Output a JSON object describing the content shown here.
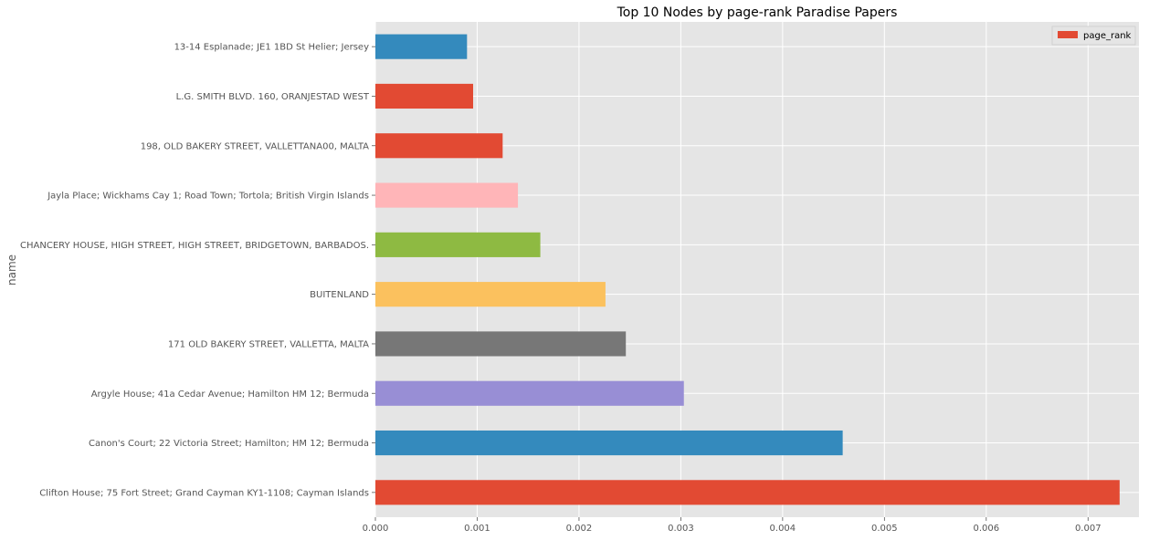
{
  "chart_data": {
    "type": "bar",
    "orientation": "horizontal",
    "title": "Top 10 Nodes by page-rank Paradise Papers",
    "ylabel": "name",
    "xlabel": "",
    "xlim": [
      0,
      0.0075
    ],
    "xticks": [
      0,
      0.001,
      0.002,
      0.003,
      0.004,
      0.005,
      0.006,
      0.007
    ],
    "xtick_labels": [
      "0.000",
      "0.001",
      "0.002",
      "0.003",
      "0.004",
      "0.005",
      "0.006",
      "0.007"
    ],
    "grid": true,
    "legend_position": "top-right",
    "categories": [
      "Clifton House; 75 Fort Street; Grand Cayman KY1-1108; Cayman Islands",
      "Canon's Court; 22 Victoria Street; Hamilton; HM 12; Bermuda",
      "Argyle House; 41a Cedar Avenue; Hamilton HM 12; Bermuda",
      "171 OLD BAKERY STREET, VALLETTA, MALTA",
      "BUITENLAND",
      "CHANCERY HOUSE, HIGH STREET, HIGH STREET, BRIDGETOWN, BARBADOS.",
      "Jayla Place; Wickhams Cay 1; Road Town; Tortola; British Virgin Islands",
      "198, OLD BAKERY STREET, VALLETTANA00, MALTA",
      "L.G. SMITH BLVD. 160, ORANJESTAD WEST",
      "13-14 Esplanade; JE1 1BD St Helier; Jersey"
    ],
    "series": [
      {
        "name": "page_rank",
        "values": [
          0.00731,
          0.00459,
          0.00303,
          0.00246,
          0.00226,
          0.00162,
          0.0014,
          0.00125,
          0.00096,
          0.0009
        ]
      }
    ],
    "bar_colors": [
      "#E24A33",
      "#348ABD",
      "#988ED5",
      "#777777",
      "#FBC15E",
      "#8EBA42",
      "#FFB5B8",
      "#E24A33",
      "#E24A33",
      "#348ABD"
    ],
    "legend_color": "#E24A33",
    "background_color": "#E5E5E5",
    "grid_color": "#FFFFFF"
  }
}
